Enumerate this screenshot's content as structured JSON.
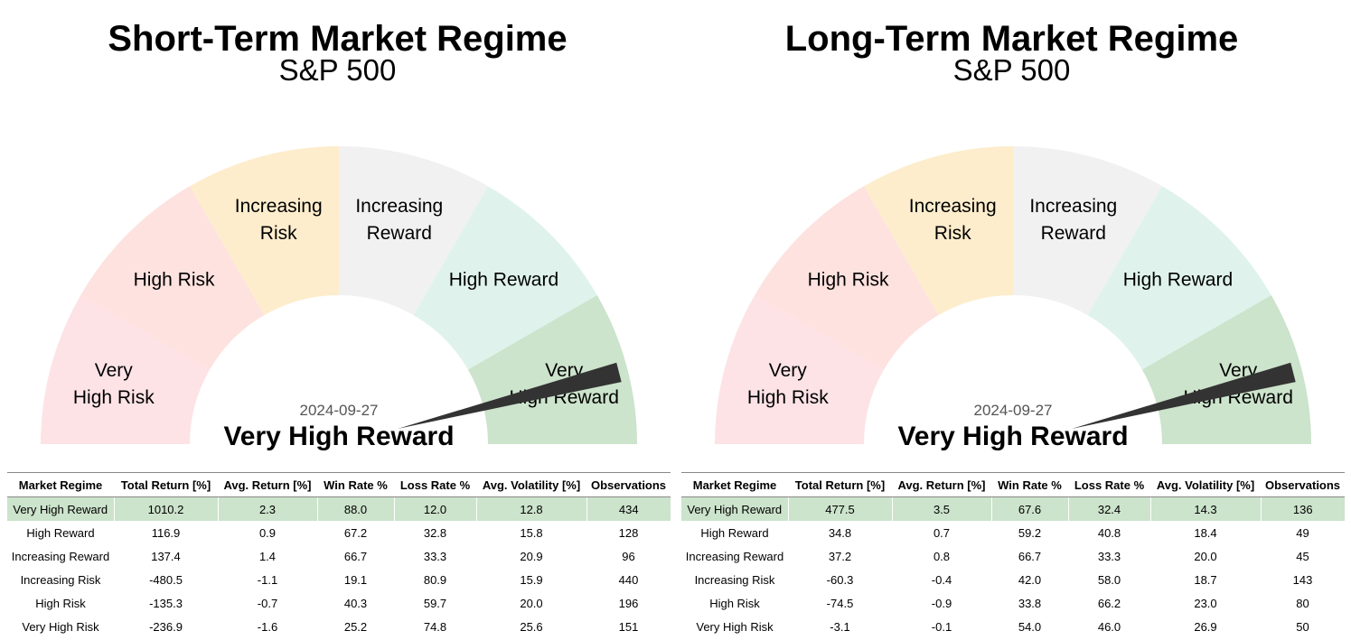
{
  "colors": {
    "very_high_risk": "#fde3e6",
    "high_risk": "#fde2df",
    "increasing_risk": "#fdedcc",
    "increasing_reward": "#f1f1f1",
    "high_reward": "#dff3ec",
    "very_high_reward": "#cce3cc",
    "needle": "#333333",
    "highlight_row": "#cce3cc"
  },
  "table_headers": [
    "Market Regime",
    "Total Return [%]",
    "Avg. Return [%]",
    "Win Rate %",
    "Loss Rate %",
    "Avg. Volatility [%]",
    "Observations"
  ],
  "chart_data": [
    {
      "type": "gauge",
      "title": "Short-Term Market Regime",
      "subtitle": "S&P 500",
      "date": "2024-09-27",
      "current_regime": "Very High Reward",
      "segments": [
        {
          "lines": [
            "Very",
            "High Risk"
          ]
        },
        {
          "lines": [
            "High Risk"
          ]
        },
        {
          "lines": [
            "Increasing",
            "Risk"
          ]
        },
        {
          "lines": [
            "Increasing",
            "Reward"
          ]
        },
        {
          "lines": [
            "High Reward"
          ]
        },
        {
          "lines": [
            "Very",
            "High Reward"
          ]
        }
      ],
      "needle_position": 0.92,
      "table": {
        "highlight_row": 0,
        "rows": [
          [
            "Very High Reward",
            "1010.2",
            "2.3",
            "88.0",
            "12.0",
            "12.8",
            "434"
          ],
          [
            "High Reward",
            "116.9",
            "0.9",
            "67.2",
            "32.8",
            "15.8",
            "128"
          ],
          [
            "Increasing Reward",
            "137.4",
            "1.4",
            "66.7",
            "33.3",
            "20.9",
            "96"
          ],
          [
            "Increasing Risk",
            "-480.5",
            "-1.1",
            "19.1",
            "80.9",
            "15.9",
            "440"
          ],
          [
            "High Risk",
            "-135.3",
            "-0.7",
            "40.3",
            "59.7",
            "20.0",
            "196"
          ],
          [
            "Very High Risk",
            "-236.9",
            "-1.6",
            "25.2",
            "74.8",
            "25.6",
            "151"
          ]
        ]
      }
    },
    {
      "type": "gauge",
      "title": "Long-Term Market Regime",
      "subtitle": "S&P 500",
      "date": "2024-09-27",
      "current_regime": "Very High Reward",
      "segments": [
        {
          "lines": [
            "Very",
            "High Risk"
          ]
        },
        {
          "lines": [
            "High Risk"
          ]
        },
        {
          "lines": [
            "Increasing",
            "Risk"
          ]
        },
        {
          "lines": [
            "Increasing",
            "Reward"
          ]
        },
        {
          "lines": [
            "High Reward"
          ]
        },
        {
          "lines": [
            "Very",
            "High Reward"
          ]
        }
      ],
      "needle_position": 0.92,
      "table": {
        "highlight_row": 0,
        "rows": [
          [
            "Very High Reward",
            "477.5",
            "3.5",
            "67.6",
            "32.4",
            "14.3",
            "136"
          ],
          [
            "High Reward",
            "34.8",
            "0.7",
            "59.2",
            "40.8",
            "18.4",
            "49"
          ],
          [
            "Increasing Reward",
            "37.2",
            "0.8",
            "66.7",
            "33.3",
            "20.0",
            "45"
          ],
          [
            "Increasing Risk",
            "-60.3",
            "-0.4",
            "42.0",
            "58.0",
            "18.7",
            "143"
          ],
          [
            "High Risk",
            "-74.5",
            "-0.9",
            "33.8",
            "66.2",
            "23.0",
            "80"
          ],
          [
            "Very High Risk",
            "-3.1",
            "-0.1",
            "54.0",
            "46.0",
            "26.9",
            "50"
          ]
        ]
      }
    }
  ]
}
